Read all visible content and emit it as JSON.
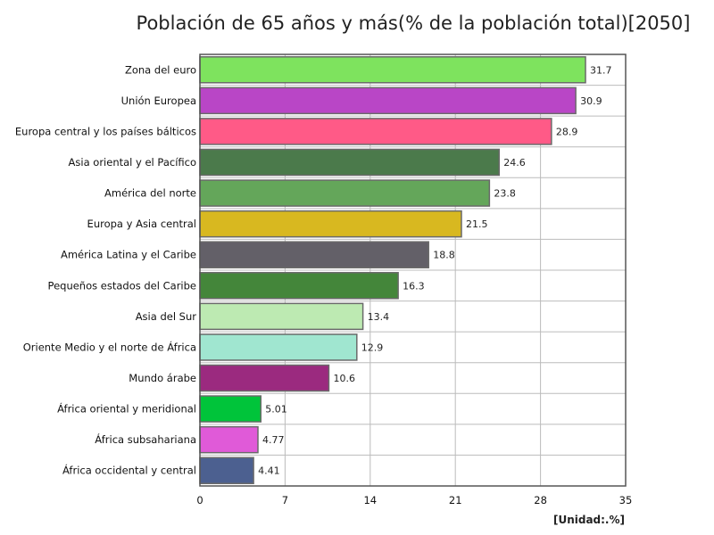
{
  "chart_data": {
    "type": "bar",
    "orientation": "horizontal",
    "title": "Población de 65 años y más(% de la población total)[2050]",
    "unit_label": "[Unidad:.%]",
    "xlim": [
      0,
      35
    ],
    "x_ticks": [
      "0",
      "7",
      "14",
      "21",
      "28",
      "35"
    ],
    "x_tick_values": [
      0,
      7,
      14,
      21,
      28,
      35
    ],
    "grid": true,
    "categories": [
      "Zona del euro",
      "Unión Europea",
      "Europa central y los países bálticos",
      "Asia oriental y el Pacífico",
      "América del norte",
      "Europa y Asia central",
      "América Latina y el Caribe",
      "Pequeños estados del Caribe",
      "Asia del Sur",
      "Oriente Medio y el norte de África",
      "Mundo árabe",
      "África oriental y meridional",
      "África subsahariana",
      "África occidental y central"
    ],
    "values": [
      31.7,
      30.9,
      28.9,
      24.6,
      23.8,
      21.5,
      18.8,
      16.3,
      13.4,
      12.9,
      10.6,
      5.01,
      4.77,
      4.41
    ],
    "value_labels": [
      "31.7",
      "30.9",
      "28.9",
      "24.6",
      "23.8",
      "21.5",
      "18.8",
      "16.3",
      "13.4",
      "12.9",
      "10.6",
      "5.01",
      "4.77",
      "4.41"
    ],
    "colors": [
      "#7ee35e",
      "#b946c6",
      "#ff5a87",
      "#4b7a4b",
      "#64a65a",
      "#d8b820",
      "#636068",
      "#44863a",
      "#bdeab2",
      "#a0e6d0",
      "#9b2a7f",
      "#00c43a",
      "#e05ad8",
      "#4c6090"
    ]
  }
}
